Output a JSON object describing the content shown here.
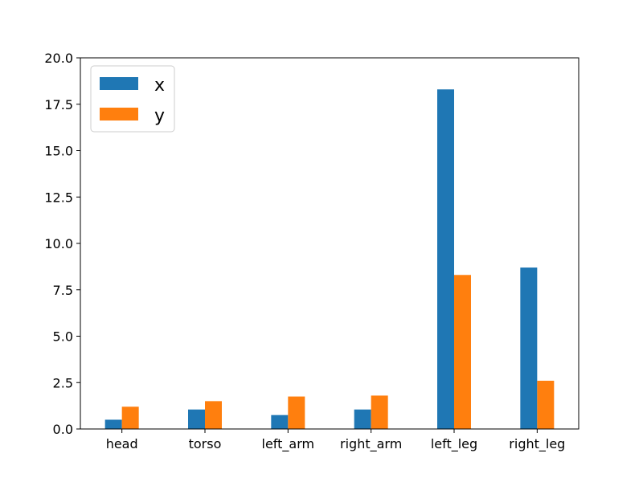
{
  "chart_data": {
    "type": "bar",
    "title": "",
    "xlabel": "",
    "ylabel": "",
    "categories": [
      "head",
      "torso",
      "left_arm",
      "right_arm",
      "left_leg",
      "right_leg"
    ],
    "series": [
      {
        "name": "x",
        "color": "#1f77b4",
        "values": [
          0.5,
          1.05,
          0.75,
          1.05,
          18.3,
          8.7
        ]
      },
      {
        "name": "y",
        "color": "#ff7f0e",
        "values": [
          1.2,
          1.5,
          1.75,
          1.8,
          8.3,
          2.6
        ]
      }
    ],
    "ylim": [
      0,
      20
    ],
    "yticks": [
      "0.0",
      "2.5",
      "5.0",
      "7.5",
      "10.0",
      "12.5",
      "15.0",
      "17.5",
      "20.0"
    ],
    "ytick_values": [
      0,
      2.5,
      5,
      7.5,
      10,
      12.5,
      15,
      17.5,
      20
    ],
    "grid": false,
    "legend_position": "top-left"
  }
}
